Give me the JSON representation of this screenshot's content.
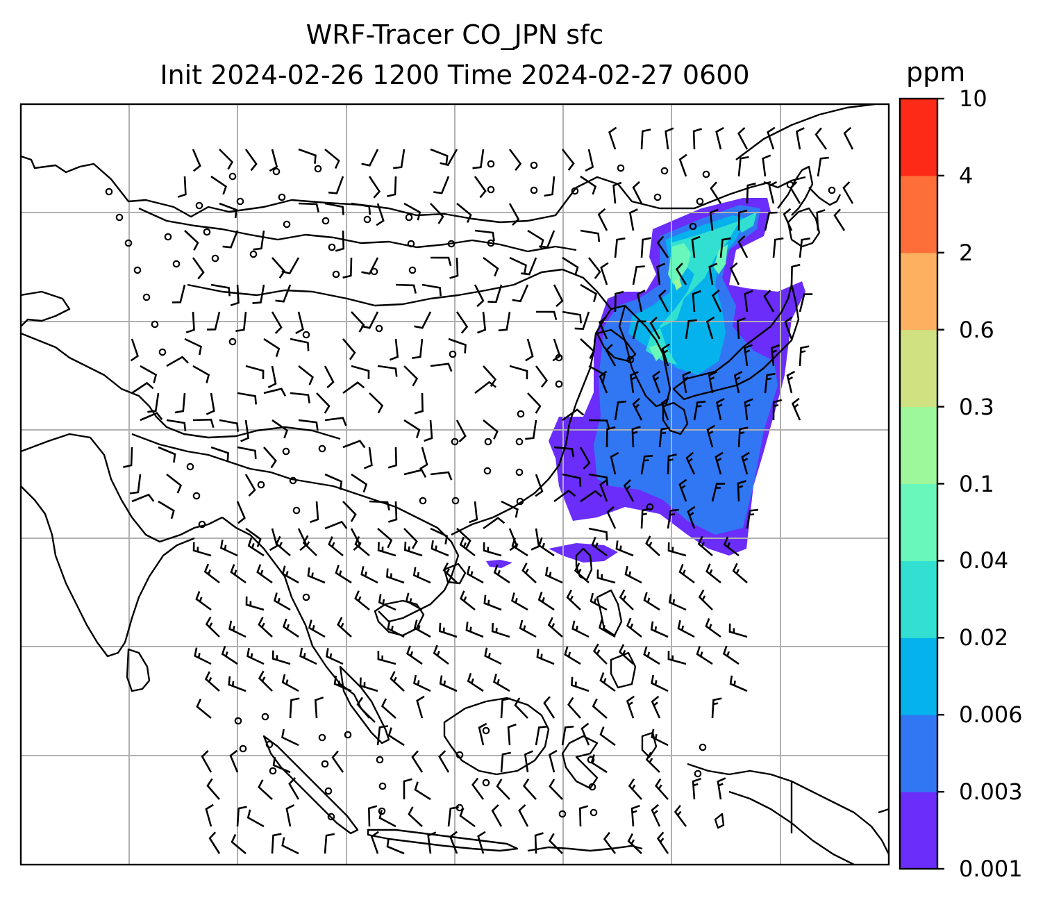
{
  "title": {
    "line1": "WRF-Tracer CO_JPN sfc",
    "line2": "Init 2024-02-26 1200 Time 2024-02-27 0600"
  },
  "colorbar": {
    "unit": "ppm",
    "levels": [
      "0.001",
      "0.003",
      "0.006",
      "0.02",
      "0.04",
      "0.1",
      "0.3",
      "0.6",
      "2",
      "4",
      "10"
    ],
    "colors": [
      "#6a2dfa",
      "#3177f3",
      "#05b2eb",
      "#32e0d2",
      "#6af7bb",
      "#9df79b",
      "#d0e181",
      "#fdb160",
      "#fd6e38",
      "#fd2a17"
    ]
  }
}
